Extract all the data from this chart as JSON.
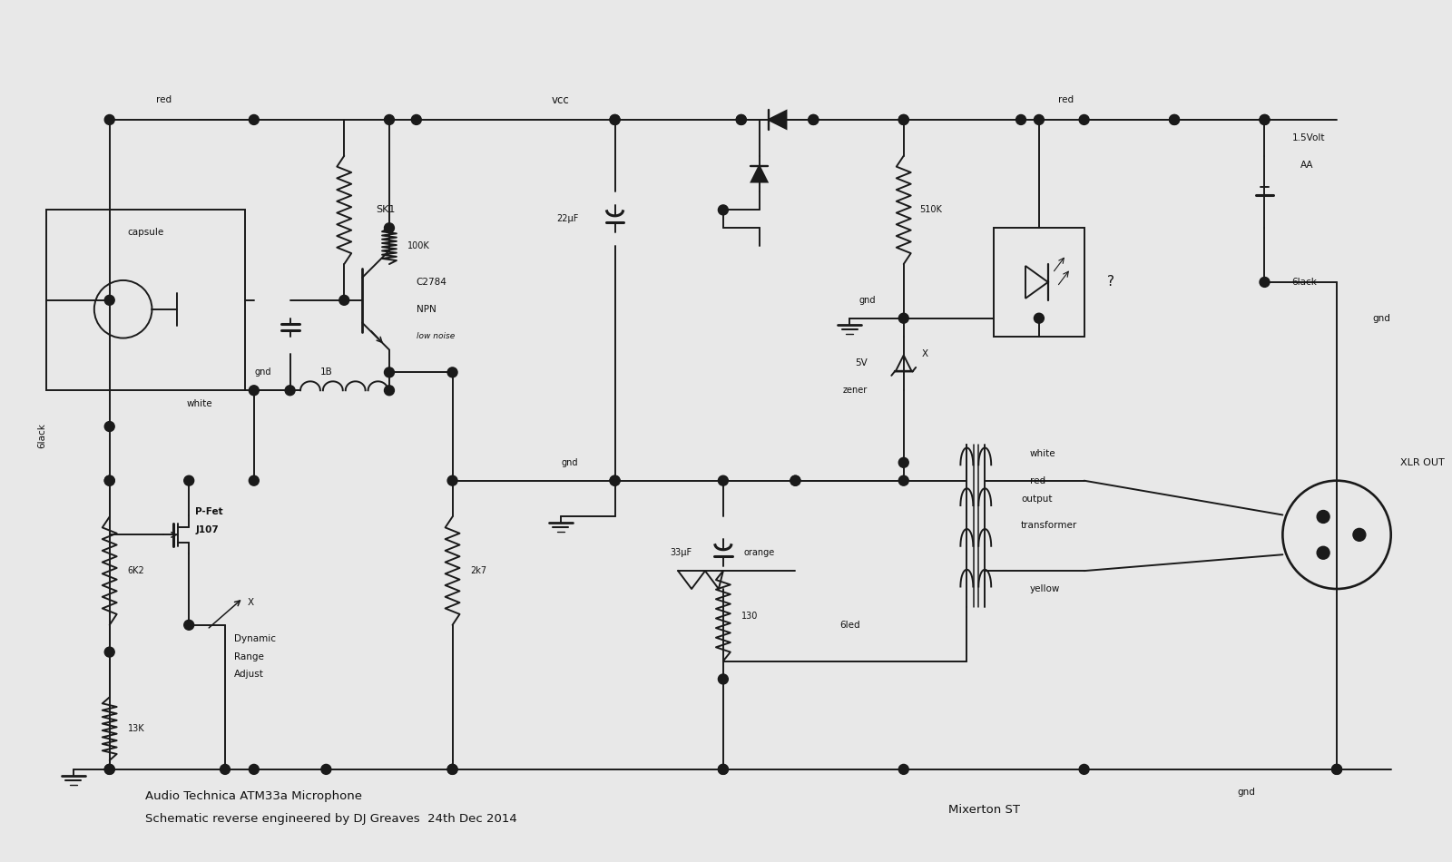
{
  "bg_color": "#e8e8e8",
  "line_color": "#1a1a1a",
  "text_color": "#111111",
  "caption_line1": "Audio Technica ATM33a Microphone",
  "caption_line2": "Schematic reverse engineered by DJ Greaves  24th Dec 2014",
  "caption_right": "Mixerton ST"
}
